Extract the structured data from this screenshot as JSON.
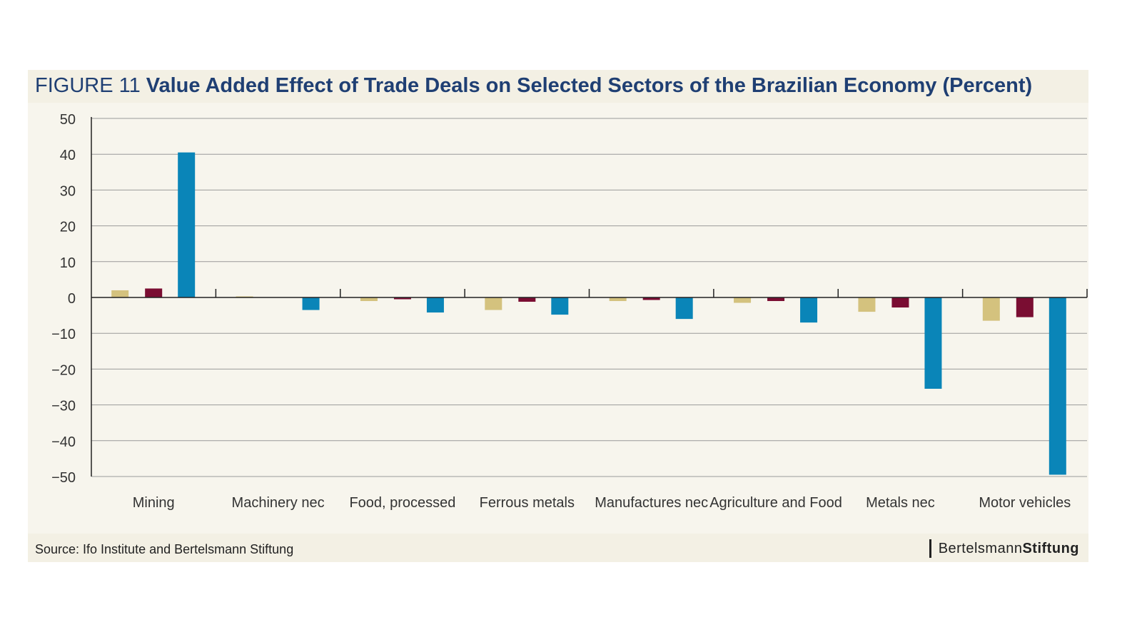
{
  "title": {
    "prefix": "FIGURE 11",
    "main": "Value Added Effect of Trade Deals on Selected Sectors of the Brazilian Economy (Percent)"
  },
  "footer": {
    "source": "Source: Ifo Institute and Bertelsmann Stiftung",
    "logo_regular": "Bertelsmann",
    "logo_bold": "Stiftung"
  },
  "chart_data": {
    "type": "bar",
    "title": "Value Added Effect of Trade Deals on Selected Sectors of the Brazilian Economy (Percent)",
    "xlabel": "",
    "ylabel": "",
    "ylim": [
      -50,
      50
    ],
    "yticks": [
      50,
      40,
      30,
      20,
      10,
      0,
      -10,
      -20,
      -30,
      -40,
      -50
    ],
    "ytick_labels": [
      "50",
      "40",
      "30",
      "20",
      "10",
      "0",
      "−10",
      "−20",
      "−30",
      "−40",
      "−50"
    ],
    "grid": true,
    "legend": "none",
    "categories": [
      "Mining",
      "Machinery nec",
      "Food, processed",
      "Ferrous metals",
      "Manufactures nec",
      "Agriculture and Food",
      "Metals nec",
      "Motor vehicles"
    ],
    "series": [
      {
        "color": "#d4c27e",
        "values": [
          2.0,
          0.3,
          -1.0,
          -3.5,
          -1.0,
          -1.5,
          -4.0,
          -6.5
        ]
      },
      {
        "color": "#7a0d32",
        "values": [
          2.5,
          0.1,
          -0.5,
          -1.2,
          -0.7,
          -1.0,
          -2.8,
          -5.5
        ]
      },
      {
        "color": "#0a85b8",
        "values": [
          40.5,
          -3.5,
          -4.2,
          -4.8,
          -6.0,
          -7.0,
          -25.5,
          -49.5
        ]
      }
    ]
  }
}
